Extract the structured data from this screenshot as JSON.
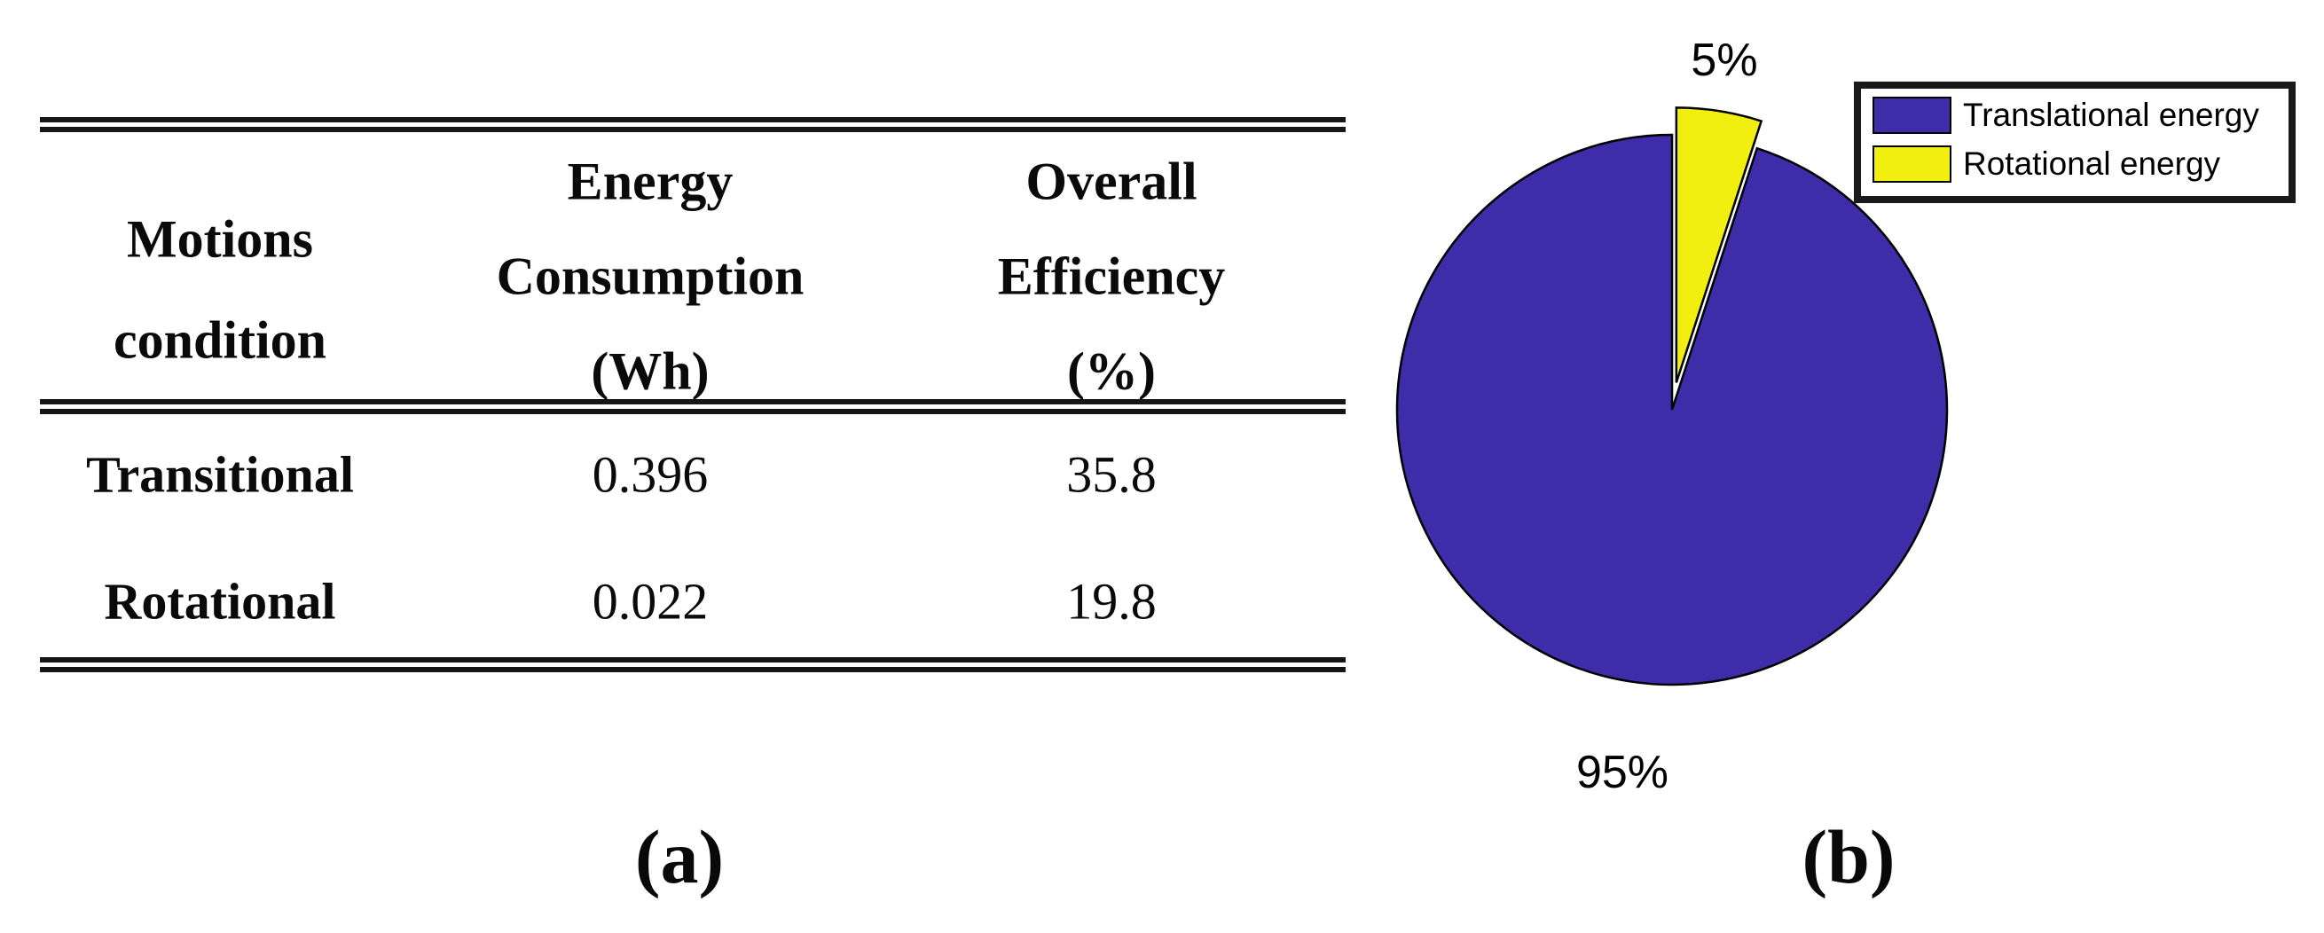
{
  "figure": {
    "caption_a": "(a)",
    "caption_b": "(b)"
  },
  "table": {
    "header": {
      "col1_line1": "Motions",
      "col1_line2": "condition",
      "col2_line1": "Energy",
      "col2_line2": "Consumption",
      "col2_line3": "(Wh)",
      "col3_line1": "Overall",
      "col3_line2": "Efficiency",
      "col3_line3": "(%)"
    },
    "rows": [
      {
        "label": "Transitional",
        "energy_wh": "0.396",
        "efficiency_pct": "35.8"
      },
      {
        "label": "Rotational",
        "energy_wh": "0.022",
        "efficiency_pct": "19.8"
      }
    ]
  },
  "pie": {
    "labels": {
      "rotational": "5%",
      "translational": "95%"
    },
    "legend": {
      "items": [
        {
          "label": "Translational energy",
          "color": "#3E2CA9"
        },
        {
          "label": "Rotational energy",
          "color": "#F2EF10"
        }
      ]
    }
  },
  "chart_data": [
    {
      "type": "table",
      "columns": [
        "Motions condition",
        "Energy Consumption (Wh)",
        "Overall Efficiency (%)"
      ],
      "rows": [
        [
          "Transitional",
          "0.396",
          "35.8"
        ],
        [
          "Rotational",
          "0.022",
          "19.8"
        ]
      ]
    },
    {
      "type": "pie",
      "categories": [
        "Translational energy",
        "Rotational energy"
      ],
      "values": [
        95,
        5
      ],
      "labels": [
        "95%",
        "5%"
      ],
      "colors": [
        "#3E2CA9",
        "#F2EF10"
      ],
      "explode": [
        false,
        true
      ],
      "start_angle_deg": 90,
      "direction": "counterclockwise",
      "legend_position": "top-right"
    }
  ]
}
